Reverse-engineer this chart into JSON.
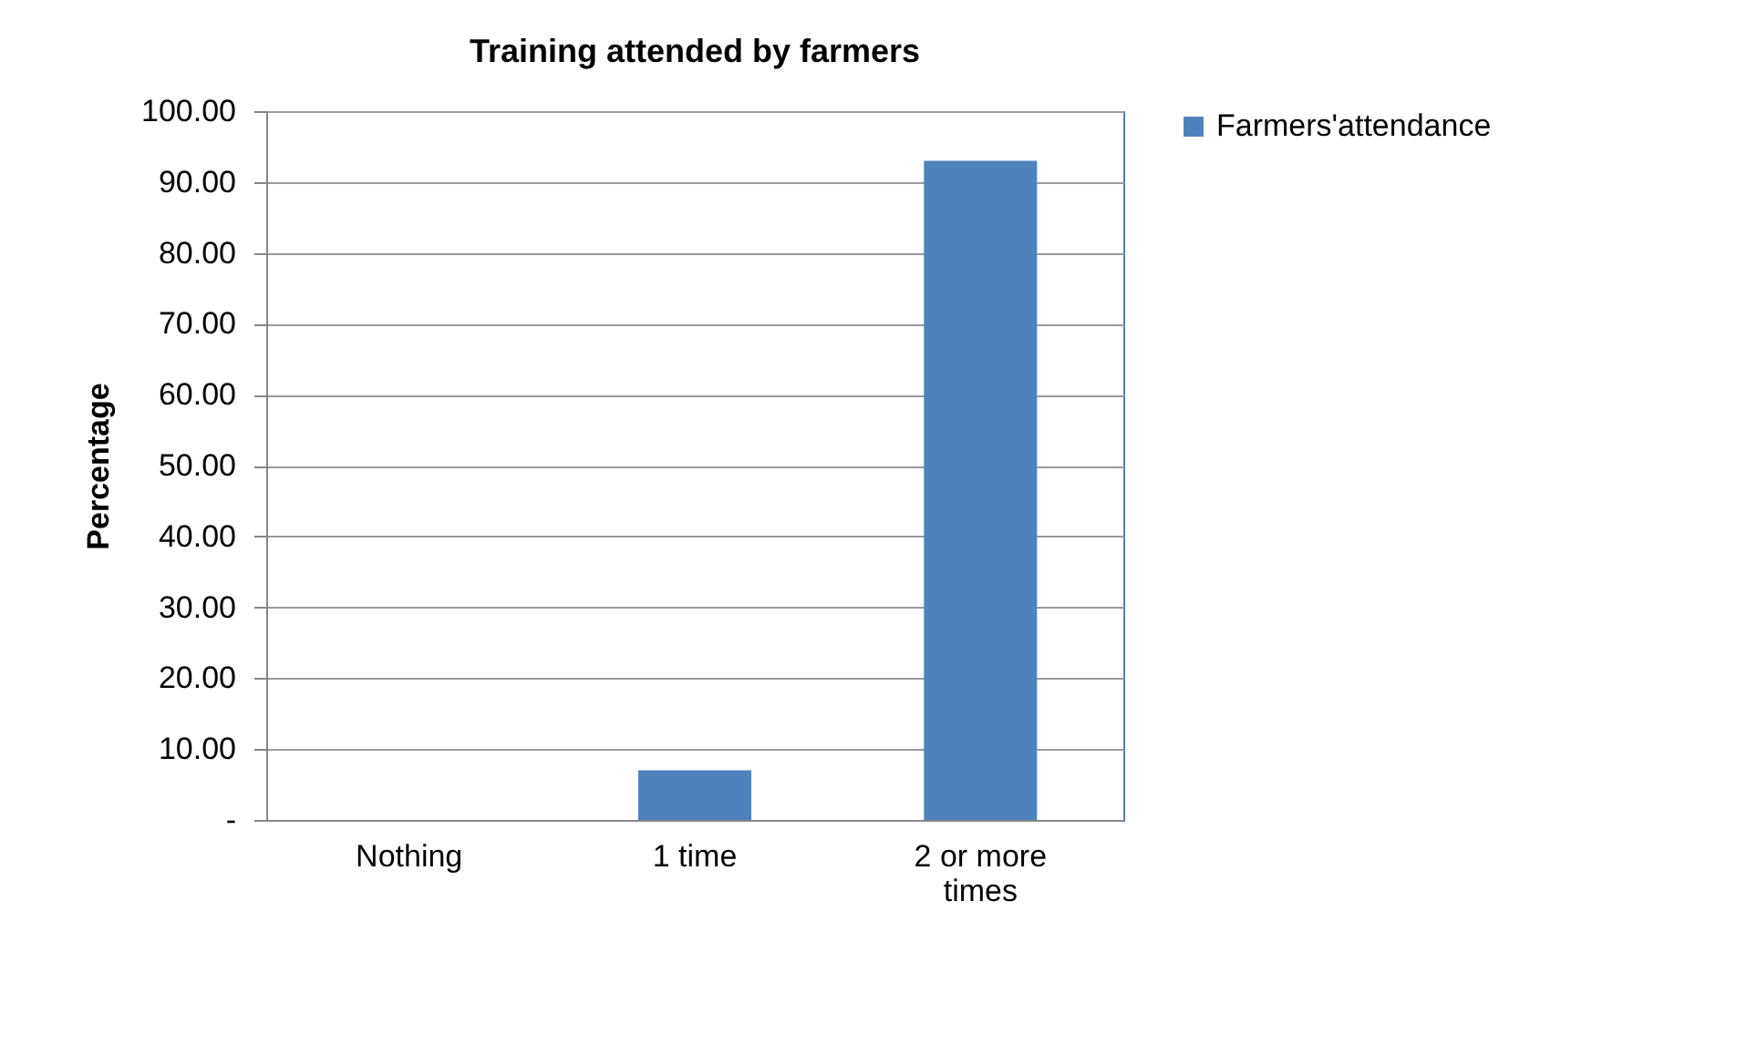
{
  "chart_data": {
    "type": "bar",
    "title": "Training attended by farmers",
    "ylabel": "Percentage",
    "categories": [
      "Nothing",
      "1 time",
      "2 or more times"
    ],
    "series": [
      {
        "name": "Farmers'attendance",
        "color": "#4f81bd",
        "values": [
          0,
          7,
          93
        ]
      }
    ],
    "ylim": [
      0,
      100
    ],
    "yticks": [
      {
        "value": 0,
        "label": "-"
      },
      {
        "value": 10,
        "label": "10.00"
      },
      {
        "value": 20,
        "label": "20.00"
      },
      {
        "value": 30,
        "label": "30.00"
      },
      {
        "value": 40,
        "label": "40.00"
      },
      {
        "value": 50,
        "label": "50.00"
      },
      {
        "value": 60,
        "label": "60.00"
      },
      {
        "value": 70,
        "label": "70.00"
      },
      {
        "value": 80,
        "label": "80.00"
      },
      {
        "value": 90,
        "label": "90.00"
      },
      {
        "value": 100,
        "label": "100.00"
      }
    ],
    "grid": "y",
    "legend": "right"
  }
}
